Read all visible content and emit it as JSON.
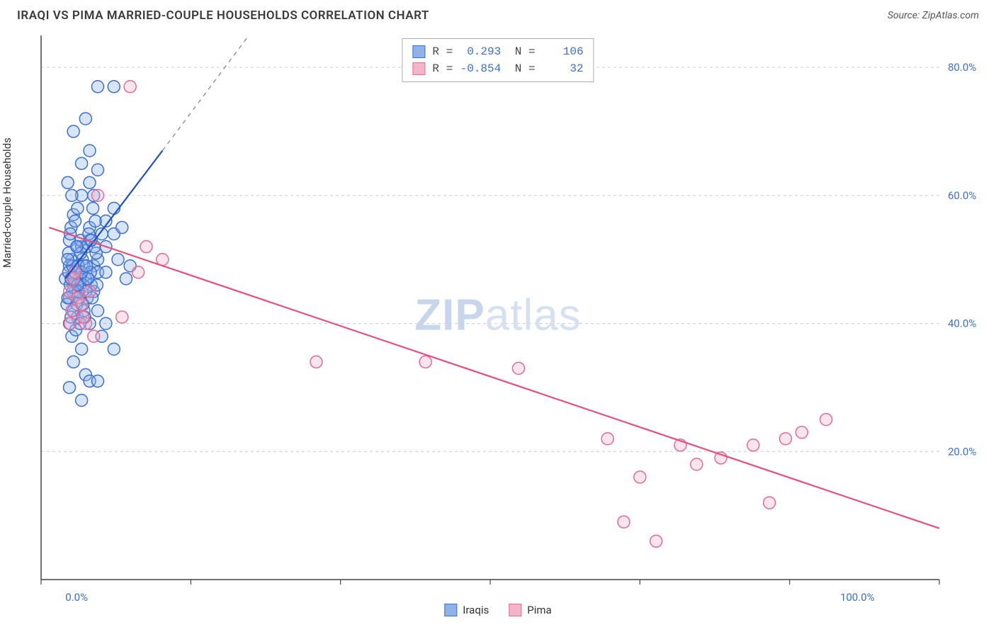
{
  "header": {
    "title": "IRAQI VS PIMA MARRIED-COUPLE HOUSEHOLDS CORRELATION CHART",
    "source_prefix": "Source: ",
    "source_name": "ZipAtlas.com"
  },
  "watermark": {
    "part1": "ZIP",
    "part2": "atlas"
  },
  "chart": {
    "type": "scatter",
    "y_axis_label": "Married-couple Households",
    "background_color": "#ffffff",
    "grid_color": "#cccccc",
    "axis_color": "#444444",
    "tick_color": "#3b6fd4",
    "tick_fontsize": 15,
    "label_fontsize": 15,
    "x_ticks": [
      {
        "value": 0,
        "label": "0.0%"
      },
      {
        "value": 100,
        "label": "100.0%"
      }
    ],
    "y_ticks": [
      {
        "value": 20,
        "label": "20.0%"
      },
      {
        "value": 40,
        "label": "40.0%"
      },
      {
        "value": 60,
        "label": "60.0%"
      },
      {
        "value": 80,
        "label": "80.0%"
      }
    ],
    "xlim": [
      -3,
      108
    ],
    "ylim": [
      0,
      85
    ],
    "marker_radius": 8.5,
    "marker_stroke_width": 1.5,
    "marker_fill_opacity": 0.35,
    "trend_line_width": 2.2,
    "series": [
      {
        "name": "Iraqis",
        "color_stroke": "#3b6fd4",
        "color_fill": "#8fb3e8",
        "trend_color": "#1d4fc4",
        "trend_dash_color": "#888888",
        "trend": {
          "x1": 0,
          "y1": 47,
          "x2": 12,
          "y2": 67,
          "dash_x2": 28,
          "dash_y2": 94
        },
        "points": [
          [
            0,
            47
          ],
          [
            0.5,
            49
          ],
          [
            1,
            46
          ],
          [
            0.5,
            44
          ],
          [
            1.2,
            45
          ],
          [
            2,
            48
          ],
          [
            0.8,
            50
          ],
          [
            1.5,
            52
          ],
          [
            3,
            53
          ],
          [
            0.2,
            43
          ],
          [
            1,
            42
          ],
          [
            2.5,
            47
          ],
          [
            3.5,
            49
          ],
          [
            4,
            48
          ],
          [
            1.8,
            46
          ],
          [
            0.5,
            40
          ],
          [
            2,
            52
          ],
          [
            3,
            55
          ],
          [
            4.5,
            54
          ],
          [
            1,
            57
          ],
          [
            2,
            60
          ],
          [
            3,
            62
          ],
          [
            4,
            64
          ],
          [
            5,
            56
          ],
          [
            6,
            58
          ],
          [
            4,
            50
          ],
          [
            5,
            52
          ],
          [
            6,
            54
          ],
          [
            7,
            55
          ],
          [
            3.5,
            45
          ],
          [
            2.2,
            43
          ],
          [
            1.5,
            41
          ],
          [
            0.8,
            38
          ],
          [
            3,
            40
          ],
          [
            4,
            42
          ],
          [
            2,
            36
          ],
          [
            1,
            34
          ],
          [
            2.5,
            32
          ],
          [
            3,
            31
          ],
          [
            0.5,
            30
          ],
          [
            2,
            28
          ],
          [
            0.7,
            55
          ],
          [
            1.5,
            58
          ],
          [
            0.3,
            62
          ],
          [
            2,
            65
          ],
          [
            3,
            67
          ],
          [
            1,
            70
          ],
          [
            2.5,
            72
          ],
          [
            4,
            77
          ],
          [
            6,
            77
          ],
          [
            3.5,
            60
          ],
          [
            5,
            48
          ],
          [
            6.5,
            50
          ],
          [
            7.5,
            47
          ],
          [
            8,
            49
          ],
          [
            4.5,
            38
          ],
          [
            5,
            40
          ],
          [
            6,
            36
          ],
          [
            4,
            31
          ],
          [
            1.8,
            47
          ],
          [
            2.3,
            49
          ],
          [
            0.4,
            51
          ],
          [
            1.9,
            53
          ],
          [
            0.9,
            45
          ],
          [
            3.2,
            46
          ],
          [
            2.7,
            44
          ],
          [
            1.1,
            48
          ],
          [
            0.6,
            46
          ],
          [
            2.1,
            50
          ],
          [
            1.4,
            43
          ],
          [
            0.3,
            44
          ],
          [
            3.8,
            51
          ],
          [
            1.6,
            49
          ],
          [
            0.7,
            41
          ],
          [
            2.4,
            41
          ],
          [
            1.3,
            39
          ],
          [
            3.1,
            48
          ],
          [
            2.6,
            52
          ],
          [
            1.7,
            44
          ],
          [
            0.4,
            48
          ],
          [
            2.9,
            54
          ],
          [
            1.2,
            56
          ],
          [
            3.4,
            58
          ],
          [
            0.8,
            60
          ],
          [
            2.2,
            46
          ],
          [
            1.6,
            45
          ],
          [
            0.5,
            53
          ],
          [
            2.8,
            47
          ],
          [
            3.6,
            52
          ],
          [
            1.9,
            51
          ],
          [
            0.9,
            49
          ],
          [
            2.5,
            45
          ],
          [
            3.3,
            44
          ],
          [
            1.4,
            52
          ],
          [
            0.6,
            54
          ],
          [
            2.0,
            48
          ],
          [
            3.7,
            56
          ],
          [
            1.1,
            47
          ],
          [
            0.3,
            50
          ],
          [
            2.3,
            42
          ],
          [
            3.9,
            46
          ],
          [
            1.8,
            40
          ],
          [
            0.7,
            47
          ],
          [
            2.6,
            49
          ],
          [
            3.2,
            53
          ],
          [
            1.5,
            46
          ]
        ]
      },
      {
        "name": "Pima",
        "color_stroke": "#e66b94",
        "color_fill": "#f4b5c9",
        "trend_color": "#e84f7e",
        "trend": {
          "x1": -2,
          "y1": 55,
          "x2": 108,
          "y2": 8
        },
        "points": [
          [
            0.5,
            45
          ],
          [
            1,
            47
          ],
          [
            1.5,
            44
          ],
          [
            2,
            43
          ],
          [
            0.8,
            42
          ],
          [
            2.5,
            40
          ],
          [
            3,
            45
          ],
          [
            1.2,
            48
          ],
          [
            0.6,
            40
          ],
          [
            2.2,
            41
          ],
          [
            3.5,
            38
          ],
          [
            4,
            60
          ],
          [
            7,
            41
          ],
          [
            8,
            77
          ],
          [
            9,
            48
          ],
          [
            10,
            52
          ],
          [
            12,
            50
          ],
          [
            31,
            34
          ],
          [
            44.5,
            34
          ],
          [
            56,
            33
          ],
          [
            67,
            22
          ],
          [
            69,
            9
          ],
          [
            71,
            16
          ],
          [
            73,
            6
          ],
          [
            76,
            21
          ],
          [
            78,
            18
          ],
          [
            81,
            19
          ],
          [
            85,
            21
          ],
          [
            87,
            12
          ],
          [
            89,
            22
          ],
          [
            91,
            23
          ],
          [
            94,
            25
          ]
        ]
      }
    ],
    "stats_box": {
      "rows": [
        {
          "swatch_fill": "#8fb3e8",
          "swatch_stroke": "#3b6fd4",
          "r_label": "R =",
          "r_value": "0.293",
          "n_label": "N =",
          "n_value": "106"
        },
        {
          "swatch_fill": "#f4b5c9",
          "swatch_stroke": "#e66b94",
          "r_label": "R =",
          "r_value": "-0.854",
          "n_label": "N =",
          "n_value": "32"
        }
      ]
    },
    "legend": [
      {
        "label": "Iraqis",
        "swatch_fill": "#8fb3e8",
        "swatch_stroke": "#3b6fd4"
      },
      {
        "label": "Pima",
        "swatch_fill": "#f4b5c9",
        "swatch_stroke": "#e66b94"
      }
    ]
  }
}
